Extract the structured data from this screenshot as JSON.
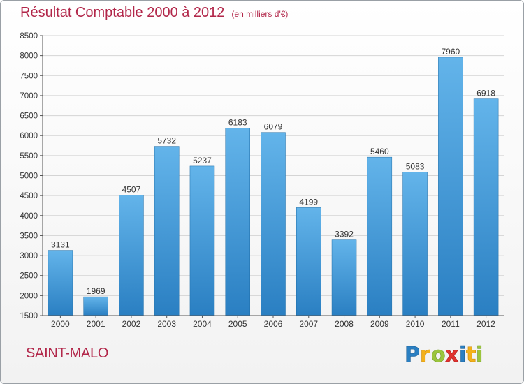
{
  "header": {
    "title": "Résultat Comptable 2000 à 2012",
    "subtitle": "(en milliers d'€)"
  },
  "footer": {
    "city": "SAINT-MALO",
    "brand": "Proxiti"
  },
  "colors": {
    "title": "#b2274a",
    "bar_top": "#63b4ea",
    "bar_bottom": "#2a7fc2"
  },
  "chart_data": {
    "type": "bar",
    "title": "Résultat Comptable 2000 à 2012",
    "subtitle": "(en milliers d'€)",
    "xlabel": "",
    "ylabel": "",
    "categories": [
      "2000",
      "2001",
      "2002",
      "2003",
      "2004",
      "2005",
      "2006",
      "2007",
      "2008",
      "2009",
      "2010",
      "2011",
      "2012"
    ],
    "values": [
      3131,
      1969,
      4507,
      5732,
      5237,
      6183,
      6079,
      4199,
      3392,
      5460,
      5083,
      7960,
      6918
    ],
    "ylim": [
      1500,
      8500
    ],
    "yticks": [
      1500,
      2000,
      2500,
      3000,
      3500,
      4000,
      4500,
      5000,
      5500,
      6000,
      6500,
      7000,
      7500,
      8000,
      8500
    ],
    "grid": true,
    "data_labels": true
  }
}
